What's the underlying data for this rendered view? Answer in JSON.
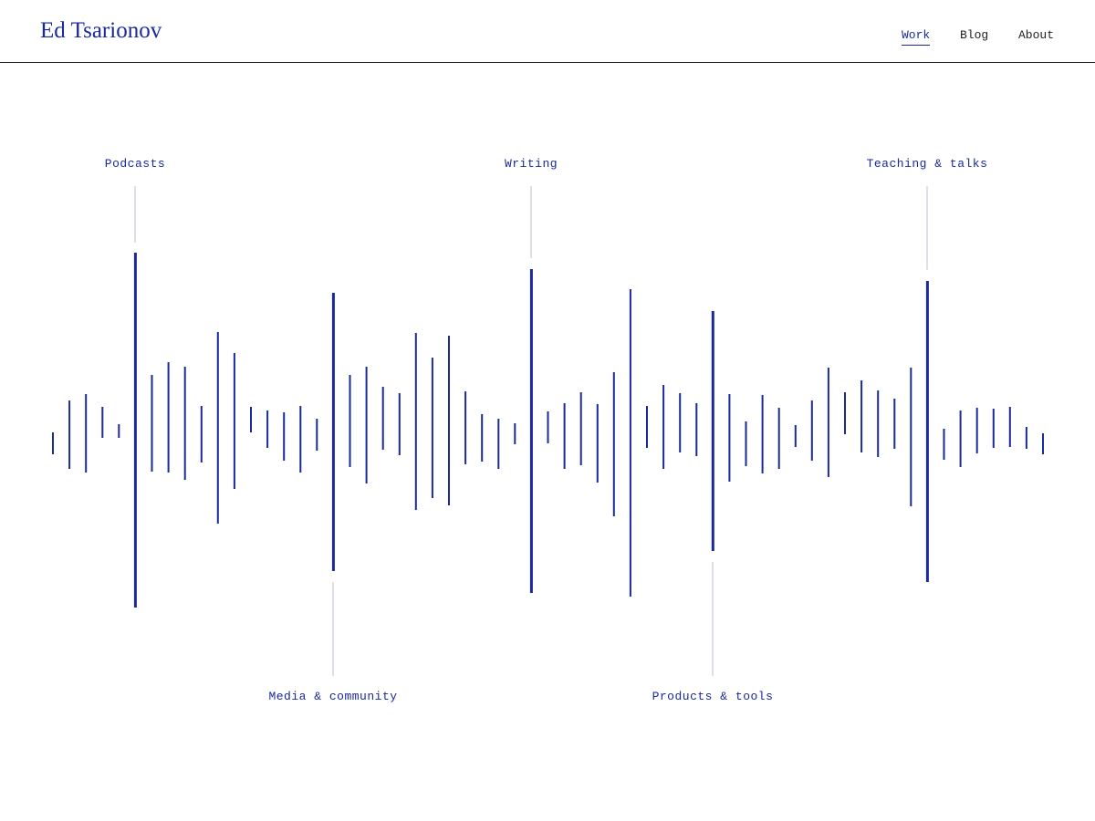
{
  "header": {
    "name": "Ed Tsarionov",
    "nav": [
      "Work",
      "Blog",
      "About"
    ]
  },
  "waveform": {
    "labels": [
      "Podcasts",
      "Writing",
      "Teaching & talks",
      "Media & community",
      "Products & tools"
    ]
  }
}
